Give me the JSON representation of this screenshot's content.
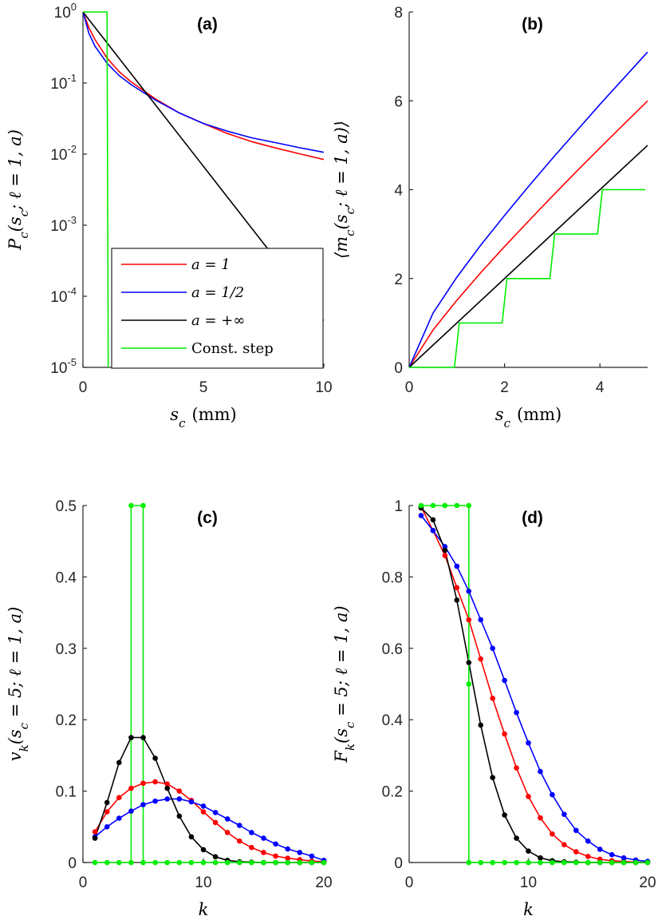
{
  "colors": {
    "a1": "#ff0000",
    "a_half": "#0000ff",
    "a_inf": "#000000",
    "const_step": "#00ee00"
  },
  "chart_data": [
    {
      "id": "a",
      "type": "line",
      "title": "(a)",
      "xlabel": "s_c (mm)",
      "ylabel": "P_c(s_c; ℓ = 1, a)",
      "xlim": [
        0,
        10
      ],
      "ylim": [
        1e-05,
        1
      ],
      "yscale": "log",
      "xticks": [
        0,
        5,
        10
      ],
      "xtick_labels": [
        "0",
        "5",
        "10"
      ],
      "ytick_labels": [
        {
          "base": "10",
          "exp": "0"
        },
        {
          "base": "10",
          "exp": "-1"
        },
        {
          "base": "10",
          "exp": "-2"
        },
        {
          "base": "10",
          "exp": "-3"
        },
        {
          "base": "10",
          "exp": "-4"
        },
        {
          "base": "10",
          "exp": "-5"
        }
      ],
      "legend": {
        "location": "bottom-left",
        "entries": [
          "a = 1",
          "a = 1/2",
          "a = +∞",
          "Const. step"
        ]
      },
      "series": [
        {
          "name": "a = 1",
          "x": [
            0,
            0.25,
            0.5,
            1,
            1.5,
            2,
            3,
            4,
            5,
            6,
            7,
            8,
            9,
            10
          ],
          "y": [
            1,
            0.6,
            0.41,
            0.225,
            0.145,
            0.104,
            0.06,
            0.038,
            0.027,
            0.0195,
            0.015,
            0.0122,
            0.0101,
            0.0084
          ]
        },
        {
          "name": "a = 1/2",
          "x": [
            0,
            0.25,
            0.5,
            1,
            1.5,
            2,
            3,
            4,
            5,
            6,
            7,
            8,
            9,
            10
          ],
          "y": [
            1,
            0.5,
            0.33,
            0.19,
            0.128,
            0.095,
            0.058,
            0.038,
            0.027,
            0.021,
            0.017,
            0.0145,
            0.0123,
            0.0106
          ]
        },
        {
          "name": "a = +∞",
          "x": [
            0,
            10
          ],
          "y": [
            1,
            4.54e-05
          ]
        },
        {
          "name": "Const. step",
          "x": [
            0,
            1,
            1,
            1.05
          ],
          "y": [
            1,
            1,
            1,
            1e-05
          ]
        }
      ]
    },
    {
      "id": "b",
      "type": "line",
      "title": "(b)",
      "xlabel": "s_c (mm)",
      "ylabel": "⟨m_c(s_c; ℓ = 1, a)⟩",
      "xlim": [
        0,
        5
      ],
      "ylim": [
        0,
        8
      ],
      "xticks": [
        0,
        2,
        4
      ],
      "yticks": [
        0,
        2,
        4,
        6,
        8
      ],
      "xtick_labels": [
        "0",
        "2",
        "4"
      ],
      "ytick_labels": [
        "0",
        "2",
        "4",
        "6",
        "8"
      ],
      "series": [
        {
          "name": "a = 1",
          "x": [
            0,
            0.5,
            1,
            1.5,
            2,
            2.5,
            3,
            3.5,
            4,
            4.5,
            5
          ],
          "y": [
            0,
            0.84,
            1.51,
            2.13,
            2.72,
            3.29,
            3.85,
            4.4,
            4.94,
            5.47,
            6.0
          ]
        },
        {
          "name": "a = 1/2",
          "x": [
            0,
            0.5,
            1,
            1.5,
            2,
            2.5,
            3,
            3.5,
            4,
            4.5,
            5
          ],
          "y": [
            0,
            1.22,
            2.03,
            2.75,
            3.42,
            4.07,
            4.7,
            5.31,
            5.92,
            6.51,
            7.1
          ]
        },
        {
          "name": "a = +∞",
          "x": [
            0,
            5
          ],
          "y": [
            0,
            5
          ]
        },
        {
          "name": "Const. step",
          "x": [
            0,
            0.95,
            1.05,
            1.95,
            2.05,
            2.95,
            3.05,
            3.95,
            4.05,
            4.95
          ],
          "y": [
            0,
            0,
            1,
            1,
            2,
            2,
            3,
            3,
            4,
            4
          ]
        }
      ]
    },
    {
      "id": "c",
      "type": "line",
      "title": "(c)",
      "xlabel": "k",
      "ylabel": "v_k(s_c = 5; ℓ = 1, a)",
      "xlim": [
        0,
        20
      ],
      "ylim": [
        0,
        0.5
      ],
      "xticks": [
        0,
        10,
        20
      ],
      "yticks": [
        0,
        0.1,
        0.2,
        0.3,
        0.4,
        0.5
      ],
      "xtick_labels": [
        "0",
        "10",
        "20"
      ],
      "ytick_labels": [
        "0",
        "0.1",
        "0.2",
        "0.3",
        "0.4",
        "0.5"
      ],
      "markers": true,
      "series": [
        {
          "name": "a = 1",
          "x": [
            1,
            2,
            3,
            4,
            5,
            6,
            7,
            8,
            9,
            10,
            11,
            12,
            13,
            14,
            15,
            16,
            17,
            18,
            19,
            20
          ],
          "y": [
            0.043,
            0.071,
            0.091,
            0.104,
            0.111,
            0.113,
            0.11,
            0.1,
            0.087,
            0.071,
            0.056,
            0.042,
            0.03,
            0.021,
            0.014,
            0.009,
            0.006,
            0.004,
            0.002,
            0.001
          ]
        },
        {
          "name": "a = 1/2",
          "x": [
            1,
            2,
            3,
            4,
            5,
            6,
            7,
            8,
            9,
            10,
            11,
            12,
            13,
            14,
            15,
            16,
            17,
            18,
            19,
            20
          ],
          "y": [
            0.036,
            0.05,
            0.062,
            0.072,
            0.081,
            0.086,
            0.089,
            0.089,
            0.085,
            0.079,
            0.07,
            0.061,
            0.052,
            0.042,
            0.034,
            0.026,
            0.019,
            0.014,
            0.009,
            0.003
          ]
        },
        {
          "name": "a = +∞",
          "x": [
            1,
            2,
            3,
            4,
            5,
            6,
            7,
            8,
            9,
            10,
            11,
            12,
            13,
            14,
            15,
            16,
            17,
            18,
            19,
            20
          ],
          "y": [
            0.034,
            0.084,
            0.14,
            0.175,
            0.175,
            0.146,
            0.104,
            0.065,
            0.036,
            0.018,
            0.008,
            0.003,
            0.001,
            0.0005,
            0,
            0,
            0,
            0,
            0,
            0
          ]
        },
        {
          "name": "Const. step",
          "x": [
            1,
            2,
            3,
            4,
            4,
            5,
            5,
            6,
            7,
            8,
            9,
            10,
            11,
            12,
            13,
            14,
            15,
            16,
            17,
            18,
            19,
            20
          ],
          "y": [
            0,
            0,
            0,
            0,
            0.5,
            0.5,
            0,
            0,
            0,
            0,
            0,
            0,
            0,
            0,
            0,
            0,
            0,
            0,
            0,
            0,
            0,
            0
          ]
        }
      ]
    },
    {
      "id": "d",
      "type": "line",
      "title": "(d)",
      "xlabel": "k",
      "ylabel": "F_k(s_c = 5; ℓ = 1, a)",
      "xlim": [
        0,
        20
      ],
      "ylim": [
        0,
        1
      ],
      "xticks": [
        0,
        10,
        20
      ],
      "yticks": [
        0,
        0.2,
        0.4,
        0.6,
        0.8,
        1
      ],
      "xtick_labels": [
        "0",
        "10",
        "20"
      ],
      "ytick_labels": [
        "0",
        "0.2",
        "0.4",
        "0.6",
        "0.8",
        "1"
      ],
      "markers": true,
      "series": [
        {
          "name": "a = 1",
          "x": [
            1,
            2,
            3,
            4,
            5,
            6,
            7,
            8,
            9,
            10,
            11,
            12,
            13,
            14,
            15,
            16,
            17,
            18,
            19,
            20
          ],
          "y": [
            0.996,
            0.93,
            0.86,
            0.77,
            0.68,
            0.57,
            0.46,
            0.36,
            0.265,
            0.185,
            0.125,
            0.08,
            0.05,
            0.03,
            0.017,
            0.009,
            0.005,
            0.003,
            0.001,
            0.0005
          ]
        },
        {
          "name": "a = 1/2",
          "x": [
            1,
            2,
            3,
            4,
            5,
            6,
            7,
            8,
            9,
            10,
            11,
            12,
            13,
            14,
            15,
            16,
            17,
            18,
            19,
            20
          ],
          "y": [
            0.972,
            0.93,
            0.885,
            0.83,
            0.76,
            0.68,
            0.6,
            0.51,
            0.42,
            0.335,
            0.255,
            0.19,
            0.135,
            0.09,
            0.06,
            0.037,
            0.022,
            0.013,
            0.007,
            0.003
          ]
        },
        {
          "name": "a = +∞",
          "x": [
            1,
            2,
            3,
            4,
            5,
            6,
            7,
            8,
            9,
            10,
            11,
            12,
            13,
            14,
            15,
            16,
            17,
            18,
            19,
            20
          ],
          "y": [
            0.993,
            0.96,
            0.875,
            0.735,
            0.56,
            0.385,
            0.238,
            0.133,
            0.068,
            0.032,
            0.013,
            0.005,
            0.002,
            0.001,
            0,
            0,
            0,
            0,
            0,
            0
          ]
        },
        {
          "name": "Const. step",
          "x": [
            1,
            2,
            3,
            4,
            5,
            5,
            5,
            6,
            7,
            8,
            9,
            10,
            11,
            12,
            13,
            14,
            15,
            16,
            17,
            18,
            19,
            20
          ],
          "y": [
            1,
            1,
            1,
            1,
            1,
            0.5,
            0,
            0,
            0,
            0,
            0,
            0,
            0,
            0,
            0,
            0,
            0,
            0,
            0,
            0,
            0,
            0
          ]
        }
      ]
    }
  ]
}
